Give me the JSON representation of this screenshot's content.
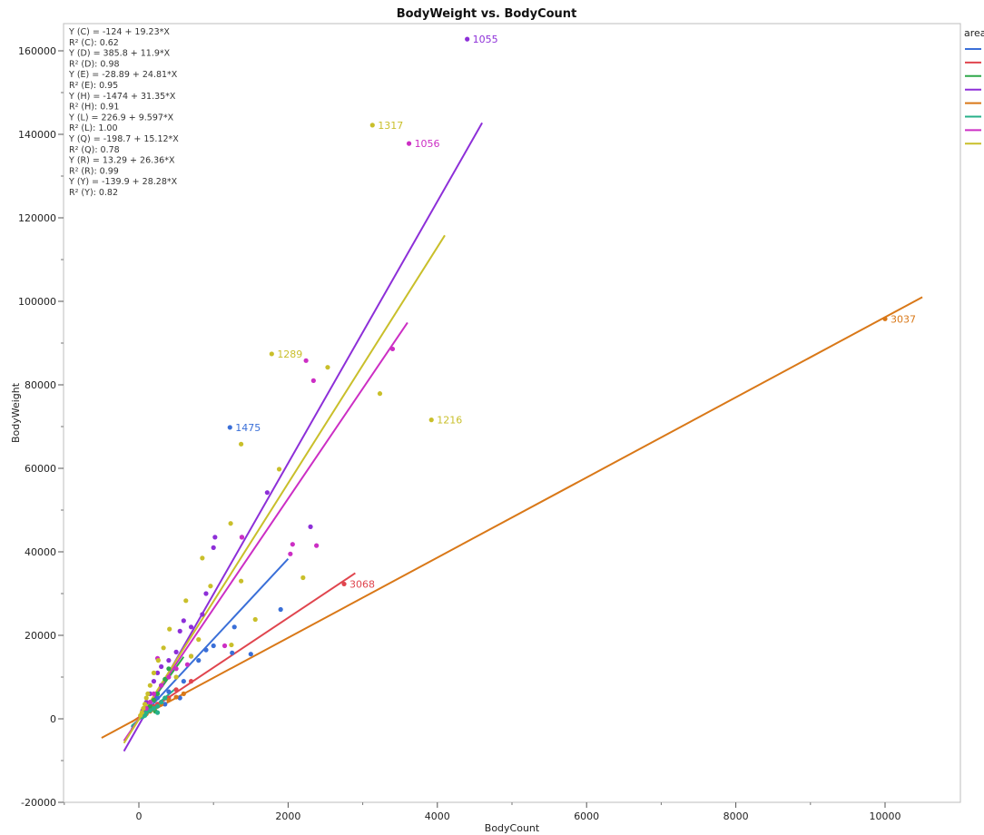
{
  "chart_data": {
    "type": "scatter",
    "title": "BodyWeight vs. BodyCount",
    "xlabel": "BodyCount",
    "ylabel": "BodyWeight",
    "xlim": [
      -1000,
      11000
    ],
    "ylim": [
      -20000,
      170000
    ],
    "x_ticks": [
      0,
      2000,
      4000,
      6000,
      8000,
      10000
    ],
    "y_ticks": [
      -20000,
      0,
      20000,
      40000,
      60000,
      80000,
      100000,
      120000,
      140000,
      160000
    ],
    "legend_title": "area",
    "legend_position": "right",
    "grid": false,
    "equations": [
      "Y (C) = -124 + 19.23*X",
      "R² (C): 0.62",
      "Y (D) = 385.8 + 11.9*X",
      "R² (D): 0.98",
      "Y (E) = -28.89 + 24.81*X",
      "R² (E): 0.95",
      "Y (H) = -1474 + 31.35*X",
      "R² (H): 0.91",
      "Y (L) = 226.9 + 9.597*X",
      "R² (L): 1.00",
      "Y (Q) = -198.7 + 15.12*X",
      "R² (Q): 0.78",
      "Y (R) = 13.29 + 26.36*X",
      "R² (R): 0.99",
      "Y (Y) = -139.9 + 28.28*X",
      "R² (Y): 0.82"
    ],
    "series": [
      {
        "color": "#3a6fd8",
        "intercept": -124,
        "slope": 19.23,
        "x_range": [
          -100,
          2000
        ],
        "points": [
          [
            1220,
            69800
          ],
          [
            1280,
            22000
          ],
          [
            1250,
            15800
          ],
          [
            1500,
            15500
          ],
          [
            1900,
            26200
          ],
          [
            900,
            16500
          ],
          [
            800,
            14000
          ],
          [
            1000,
            17500
          ],
          [
            600,
            9000
          ],
          [
            550,
            5000
          ],
          [
            400,
            6500
          ],
          [
            350,
            3500
          ],
          [
            300,
            8000
          ],
          [
            250,
            5000
          ],
          [
            200,
            3000
          ],
          [
            150,
            2500
          ],
          [
            100,
            1500
          ],
          [
            60,
            800
          ]
        ],
        "labels": [
          {
            "x": 1220,
            "y": 69800,
            "text": "1475"
          }
        ]
      },
      {
        "color": "#e0454e",
        "intercept": 385.8,
        "slope": 11.9,
        "x_range": [
          -100,
          2900
        ],
        "points": [
          [
            2750,
            32300
          ],
          [
            700,
            9000
          ],
          [
            500,
            7000
          ],
          [
            400,
            5000
          ],
          [
            300,
            4000
          ],
          [
            250,
            3500
          ],
          [
            200,
            3000
          ],
          [
            150,
            2000
          ],
          [
            100,
            1500
          ],
          [
            60,
            700
          ]
        ],
        "labels": [
          {
            "x": 2750,
            "y": 32300,
            "text": "3068"
          }
        ]
      },
      {
        "color": "#2ea84a",
        "intercept": -28.89,
        "slope": 24.81,
        "x_range": [
          -100,
          600
        ],
        "points": [
          [
            400,
            12000
          ],
          [
            350,
            9500
          ],
          [
            300,
            8000
          ],
          [
            250,
            6000
          ],
          [
            200,
            4500
          ],
          [
            150,
            3000
          ],
          [
            120,
            2500
          ],
          [
            100,
            2000
          ],
          [
            80,
            1500
          ],
          [
            60,
            1000
          ],
          [
            220,
            1800
          ]
        ],
        "labels": []
      },
      {
        "color": "#8d2fd8",
        "intercept": -1474,
        "slope": 31.35,
        "x_range": [
          -200,
          4600
        ],
        "points": [
          [
            4400,
            162800
          ],
          [
            1720,
            54200
          ],
          [
            1380,
            43500
          ],
          [
            1000,
            41000
          ],
          [
            1020,
            43500
          ],
          [
            2300,
            46000
          ],
          [
            900,
            30000
          ],
          [
            850,
            25000
          ],
          [
            700,
            22000
          ],
          [
            600,
            23500
          ],
          [
            550,
            21000
          ],
          [
            500,
            16000
          ],
          [
            400,
            14000
          ],
          [
            300,
            12500
          ],
          [
            250,
            11000
          ],
          [
            200,
            9000
          ],
          [
            150,
            6000
          ],
          [
            100,
            4000
          ],
          [
            50,
            2000
          ]
        ],
        "labels": [
          {
            "x": 4400,
            "y": 162800,
            "text": "1055"
          }
        ]
      },
      {
        "color": "#d97818",
        "intercept": 226.9,
        "slope": 9.597,
        "x_range": [
          -500,
          10500
        ],
        "points": [
          [
            10000,
            95800
          ],
          [
            600,
            6000
          ],
          [
            500,
            5200
          ],
          [
            400,
            4500
          ],
          [
            300,
            3500
          ],
          [
            200,
            2500
          ],
          [
            150,
            1800
          ],
          [
            100,
            1200
          ],
          [
            50,
            700
          ]
        ],
        "labels": [
          {
            "x": 10000,
            "y": 95800,
            "text": "3037"
          }
        ]
      },
      {
        "color": "#27b08a",
        "intercept": -198.7,
        "slope": 15.12,
        "x_range": [
          -100,
          500
        ],
        "points": [
          [
            350,
            5000
          ],
          [
            300,
            4000
          ],
          [
            250,
            3000
          ],
          [
            200,
            2500
          ],
          [
            150,
            2000
          ],
          [
            100,
            1500
          ],
          [
            80,
            800
          ],
          [
            50,
            500
          ],
          [
            250,
            1500
          ]
        ],
        "labels": []
      },
      {
        "color": "#cc2ec4",
        "intercept": 13.29,
        "slope": 26.36,
        "x_range": [
          -200,
          3600
        ],
        "points": [
          [
            3620,
            137800
          ],
          [
            3400,
            88600
          ],
          [
            2240,
            85800
          ],
          [
            2340,
            81000
          ],
          [
            2380,
            41500
          ],
          [
            2060,
            41800
          ],
          [
            2030,
            39500
          ],
          [
            1380,
            43500
          ],
          [
            1150,
            17500
          ],
          [
            700,
            15000
          ],
          [
            650,
            13000
          ],
          [
            500,
            12000
          ],
          [
            400,
            10000
          ],
          [
            300,
            8000
          ],
          [
            250,
            14500
          ],
          [
            200,
            6000
          ],
          [
            150,
            4000
          ],
          [
            100,
            2500
          ]
        ],
        "labels": [
          {
            "x": 3620,
            "y": 137800,
            "text": "1056"
          }
        ]
      },
      {
        "color": "#c9bf2a",
        "intercept": -139.9,
        "slope": 28.28,
        "x_range": [
          -200,
          4100
        ],
        "points": [
          [
            3130,
            142200
          ],
          [
            3920,
            71600
          ],
          [
            1780,
            87400
          ],
          [
            2530,
            84200
          ],
          [
            3230,
            77900
          ],
          [
            1370,
            65800
          ],
          [
            1880,
            59800
          ],
          [
            1230,
            46800
          ],
          [
            2200,
            33800
          ],
          [
            1370,
            33000
          ],
          [
            960,
            31800
          ],
          [
            850,
            38500
          ],
          [
            1560,
            23800
          ],
          [
            1240,
            17700
          ],
          [
            630,
            28300
          ],
          [
            410,
            21500
          ],
          [
            330,
            17000
          ],
          [
            260,
            14000
          ],
          [
            200,
            11000
          ],
          [
            150,
            8000
          ],
          [
            120,
            6000
          ],
          [
            100,
            5000
          ],
          [
            80,
            3500
          ],
          [
            60,
            2500
          ],
          [
            40,
            1500
          ],
          [
            20,
            800
          ],
          [
            500,
            10000
          ],
          [
            700,
            15000
          ],
          [
            800,
            19000
          ]
        ],
        "labels": [
          {
            "x": 3130,
            "y": 142200,
            "text": "1317"
          },
          {
            "x": 1780,
            "y": 87400,
            "text": "1289"
          },
          {
            "x": 3920,
            "y": 71600,
            "text": "1216"
          }
        ]
      }
    ]
  }
}
